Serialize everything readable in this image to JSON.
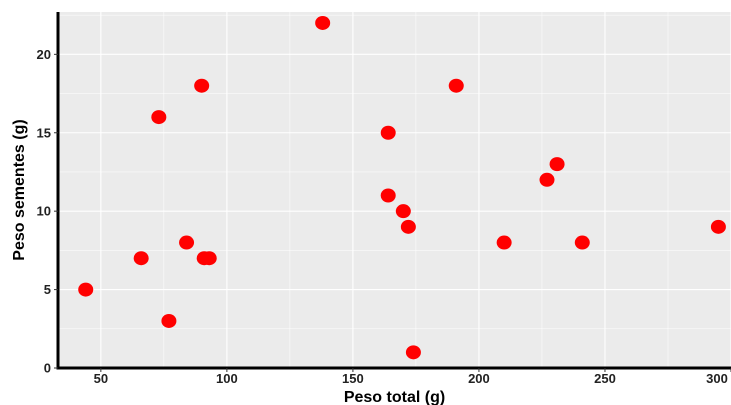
{
  "chart_data": {
    "type": "scatter",
    "title": "",
    "xlabel": "Peso total (g)",
    "ylabel": "Peso sementes (g)",
    "xlim": [
      33,
      300
    ],
    "ylim": [
      0,
      22.7
    ],
    "x_ticks": [
      50,
      100,
      150,
      200,
      250,
      300
    ],
    "y_ticks": [
      0,
      5,
      10,
      15,
      20
    ],
    "grid": true,
    "legend": "none",
    "series": [
      {
        "points": [
          {
            "x": 44,
            "y": 5
          },
          {
            "x": 66,
            "y": 7
          },
          {
            "x": 73,
            "y": 16
          },
          {
            "x": 77,
            "y": 3
          },
          {
            "x": 84,
            "y": 8
          },
          {
            "x": 90,
            "y": 18
          },
          {
            "x": 91,
            "y": 7
          },
          {
            "x": 93,
            "y": 7
          },
          {
            "x": 138,
            "y": 22
          },
          {
            "x": 164,
            "y": 15
          },
          {
            "x": 164,
            "y": 11
          },
          {
            "x": 170,
            "y": 10
          },
          {
            "x": 172,
            "y": 9
          },
          {
            "x": 174,
            "y": 1
          },
          {
            "x": 191,
            "y": 18
          },
          {
            "x": 210,
            "y": 8
          },
          {
            "x": 227,
            "y": 12
          },
          {
            "x": 231,
            "y": 13
          },
          {
            "x": 241,
            "y": 8
          },
          {
            "x": 295,
            "y": 9
          }
        ]
      }
    ]
  },
  "colors": {
    "panel_background": "#ebebeb",
    "grid": "#ffffff",
    "axis_line": "#000000",
    "point": "#ff0000"
  }
}
